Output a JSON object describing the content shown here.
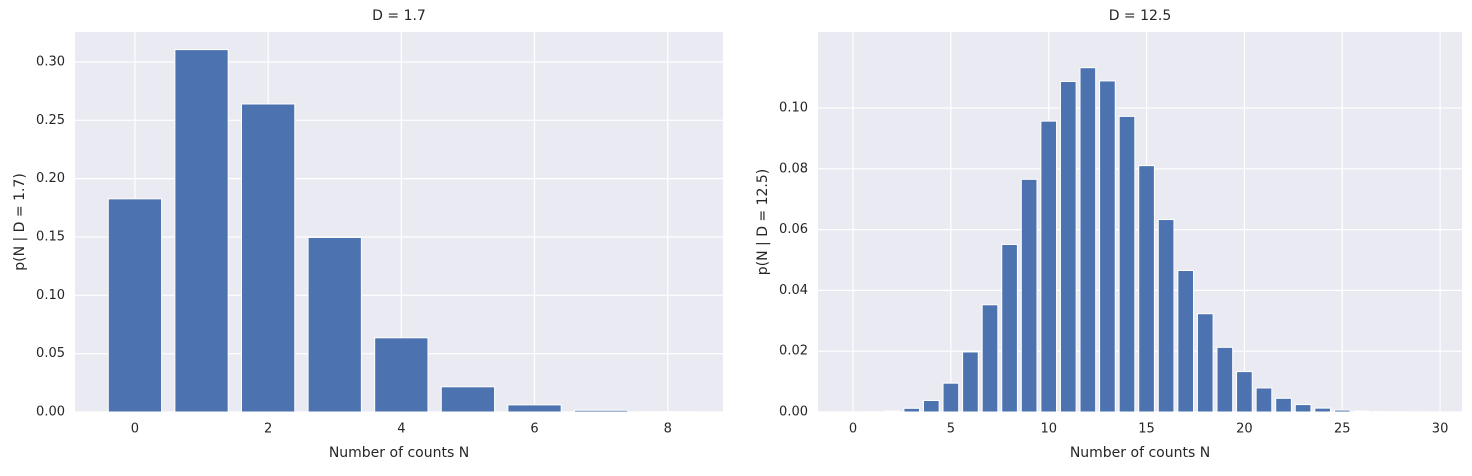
{
  "chart_data": [
    {
      "type": "bar",
      "title": "D = 1.7",
      "x_label": "Number of counts N",
      "y_label": "p(N | D = 1.7)",
      "x": [
        0,
        1,
        2,
        3,
        4,
        5,
        6,
        7,
        8
      ],
      "values": [
        0.1827,
        0.3106,
        0.264,
        0.1496,
        0.0636,
        0.0216,
        0.0061,
        0.0015,
        0.0003
      ],
      "color": "#4c72b0",
      "xlim": [
        -0.9,
        8.83
      ],
      "ylim": [
        0,
        0.3257
      ],
      "xticks": [
        0,
        2,
        4,
        6,
        8
      ],
      "yticks": [
        {
          "value": 0,
          "label": "0.00"
        },
        {
          "value": 0.05,
          "label": "0.05"
        },
        {
          "value": 0.1,
          "label": "0.10"
        },
        {
          "value": 0.15,
          "label": "0.15"
        },
        {
          "value": 0.2,
          "label": "0.20"
        },
        {
          "value": 0.25,
          "label": "0.25"
        },
        {
          "value": 0.3,
          "label": "0.30"
        }
      ],
      "grid": true
    },
    {
      "type": "bar",
      "title": "D = 12.5",
      "x_label": "Number of counts N",
      "y_label": "p(N | D = 12.5)",
      "x": [
        0,
        1,
        2,
        3,
        4,
        5,
        6,
        7,
        8,
        9,
        10,
        11,
        12,
        13,
        14,
        15,
        16,
        17,
        18,
        19,
        20,
        21,
        22,
        23,
        24,
        25,
        26,
        27,
        28,
        29
      ],
      "values": [
        3.7e-06,
        4.66e-05,
        0.000291,
        0.00121,
        0.00379,
        0.00948,
        0.01975,
        0.03527,
        0.05511,
        0.07654,
        0.09568,
        0.10873,
        0.11326,
        0.10891,
        0.09724,
        0.08104,
        0.06331,
        0.04655,
        0.03233,
        0.02127,
        0.01329,
        0.00791,
        0.0045,
        0.00244,
        0.00127,
        0.00064,
        0.00031,
        0.00014,
        6e-05,
        3e-05
      ],
      "color": "#4c72b0",
      "xlim": [
        -1.79,
        31.12
      ],
      "ylim": [
        0,
        0.125
      ],
      "xticks": [
        0,
        5,
        10,
        15,
        20,
        25,
        30
      ],
      "yticks": [
        {
          "value": 0,
          "label": "0.00"
        },
        {
          "value": 0.02,
          "label": "0.02"
        },
        {
          "value": 0.04,
          "label": "0.04"
        },
        {
          "value": 0.06,
          "label": "0.06"
        },
        {
          "value": 0.08,
          "label": "0.08"
        },
        {
          "value": 0.1,
          "label": "0.10"
        }
      ],
      "grid": true
    }
  ]
}
